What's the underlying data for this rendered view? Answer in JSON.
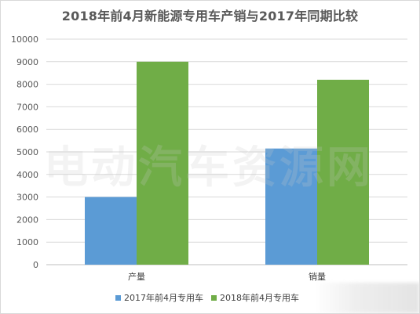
{
  "chart_data": {
    "type": "bar",
    "title": "2018年前4月新能源专用车产销与2017年同期比较",
    "categories": [
      "产量",
      "销量"
    ],
    "series": [
      {
        "name": "2017年前4月专用车",
        "values": [
          3000,
          5150
        ],
        "color": "#5b9bd5"
      },
      {
        "name": "2018年前4月专用车",
        "values": [
          9000,
          8200
        ],
        "color": "#70ad47"
      }
    ],
    "ylim": [
      0,
      10000
    ],
    "yticks": [
      0,
      1000,
      2000,
      3000,
      4000,
      5000,
      6000,
      7000,
      8000,
      9000,
      10000
    ],
    "xlabel": "",
    "ylabel": "",
    "grid": true,
    "legend_position": "bottom"
  },
  "watermark_text": "电动汽车资源网"
}
